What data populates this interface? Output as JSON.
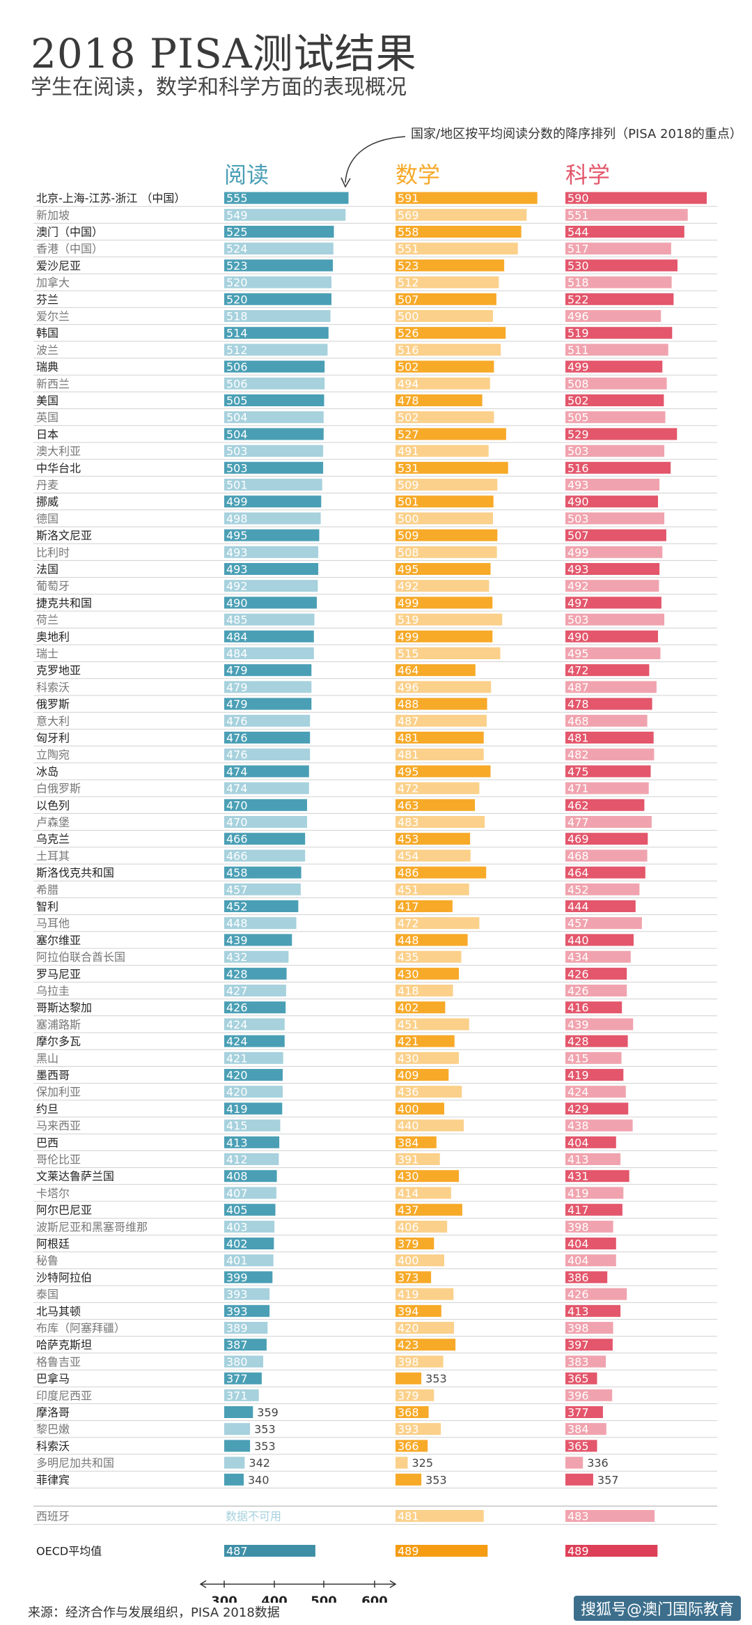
{
  "title": "2018 PISA测试结果",
  "subtitle": "学生在阅读，数学和科学方面的表现概况",
  "annotation": "国家/地区按平均阅读分数的降序排列（PISA 2018的重点）",
  "source": "来源：经济合作与发展组织，PISA 2018数据",
  "watermark": "搜狐号@澳门国际教育",
  "colors": {
    "reading": "#4a9fb5",
    "reading_light": "#a6d1dd",
    "math": "#f7a928",
    "math_light": "#fbd08a",
    "science": "#e3566b",
    "science_light": "#f0a3ae"
  },
  "chart_data": {
    "type": "bar",
    "series": [
      {
        "name": "阅读"
      },
      {
        "name": "数学"
      },
      {
        "name": "科学"
      }
    ],
    "x_axis_ticks": [
      300,
      400,
      500,
      600
    ],
    "xlim": [
      300,
      600
    ],
    "rows": [
      {
        "name": "北京-上海-江苏-浙江 （中国）",
        "reading": 555,
        "math": 591,
        "science": 590
      },
      {
        "name": "新加坡",
        "reading": 549,
        "math": 569,
        "science": 551
      },
      {
        "name": "澳门（中国）",
        "reading": 525,
        "math": 558,
        "science": 544
      },
      {
        "name": "香港（中国）",
        "reading": 524,
        "math": 551,
        "science": 517
      },
      {
        "name": "爱沙尼亚",
        "reading": 523,
        "math": 523,
        "science": 530
      },
      {
        "name": "加拿大",
        "reading": 520,
        "math": 512,
        "science": 518
      },
      {
        "name": "芬兰",
        "reading": 520,
        "math": 507,
        "science": 522
      },
      {
        "name": "爱尔兰",
        "reading": 518,
        "math": 500,
        "science": 496
      },
      {
        "name": "韩国",
        "reading": 514,
        "math": 526,
        "science": 519
      },
      {
        "name": "波兰",
        "reading": 512,
        "math": 516,
        "science": 511
      },
      {
        "name": "瑞典",
        "reading": 506,
        "math": 502,
        "science": 499
      },
      {
        "name": "新西兰",
        "reading": 506,
        "math": 494,
        "science": 508
      },
      {
        "name": "美国",
        "reading": 505,
        "math": 478,
        "science": 502
      },
      {
        "name": "英国",
        "reading": 504,
        "math": 502,
        "science": 505
      },
      {
        "name": "日本",
        "reading": 504,
        "math": 527,
        "science": 529
      },
      {
        "name": "澳大利亚",
        "reading": 503,
        "math": 491,
        "science": 503
      },
      {
        "name": "中华台北",
        "reading": 503,
        "math": 531,
        "science": 516
      },
      {
        "name": "丹麦",
        "reading": 501,
        "math": 509,
        "science": 493
      },
      {
        "name": "挪威",
        "reading": 499,
        "math": 501,
        "science": 490
      },
      {
        "name": "德国",
        "reading": 498,
        "math": 500,
        "science": 503
      },
      {
        "name": "斯洛文尼亚",
        "reading": 495,
        "math": 509,
        "science": 507
      },
      {
        "name": "比利时",
        "reading": 493,
        "math": 508,
        "science": 499
      },
      {
        "name": "法国",
        "reading": 493,
        "math": 495,
        "science": 493
      },
      {
        "name": "葡萄牙",
        "reading": 492,
        "math": 492,
        "science": 492
      },
      {
        "name": "捷克共和国",
        "reading": 490,
        "math": 499,
        "science": 497
      },
      {
        "name": "荷兰",
        "reading": 485,
        "math": 519,
        "science": 503
      },
      {
        "name": "奥地利",
        "reading": 484,
        "math": 499,
        "science": 490
      },
      {
        "name": "瑞士",
        "reading": 484,
        "math": 515,
        "science": 495
      },
      {
        "name": "克罗地亚",
        "reading": 479,
        "math": 464,
        "science": 472
      },
      {
        "name": "科索沃",
        "reading": 479,
        "math": 496,
        "science": 487
      },
      {
        "name": "俄罗斯",
        "reading": 479,
        "math": 488,
        "science": 478
      },
      {
        "name": "意大利",
        "reading": 476,
        "math": 487,
        "science": 468
      },
      {
        "name": "匈牙利",
        "reading": 476,
        "math": 481,
        "science": 481
      },
      {
        "name": "立陶宛",
        "reading": 476,
        "math": 481,
        "science": 482
      },
      {
        "name": "冰岛",
        "reading": 474,
        "math": 495,
        "science": 475
      },
      {
        "name": "白俄罗斯",
        "reading": 474,
        "math": 472,
        "science": 471
      },
      {
        "name": "以色列",
        "reading": 470,
        "math": 463,
        "science": 462
      },
      {
        "name": "卢森堡",
        "reading": 470,
        "math": 483,
        "science": 477
      },
      {
        "name": "乌克兰",
        "reading": 466,
        "math": 453,
        "science": 469
      },
      {
        "name": "土耳其",
        "reading": 466,
        "math": 454,
        "science": 468
      },
      {
        "name": "斯洛伐克共和国",
        "reading": 458,
        "math": 486,
        "science": 464
      },
      {
        "name": "希腊",
        "reading": 457,
        "math": 451,
        "science": 452
      },
      {
        "name": "智利",
        "reading": 452,
        "math": 417,
        "science": 444
      },
      {
        "name": "马耳他",
        "reading": 448,
        "math": 472,
        "science": 457
      },
      {
        "name": "塞尔维亚",
        "reading": 439,
        "math": 448,
        "science": 440
      },
      {
        "name": "阿拉伯联合酋长国",
        "reading": 432,
        "math": 435,
        "science": 434
      },
      {
        "name": "罗马尼亚",
        "reading": 428,
        "math": 430,
        "science": 426
      },
      {
        "name": "乌拉圭",
        "reading": 427,
        "math": 418,
        "science": 426
      },
      {
        "name": "哥斯达黎加",
        "reading": 426,
        "math": 402,
        "science": 416
      },
      {
        "name": "塞浦路斯",
        "reading": 424,
        "math": 451,
        "science": 439
      },
      {
        "name": "摩尔多瓦",
        "reading": 424,
        "math": 421,
        "science": 428
      },
      {
        "name": "黑山",
        "reading": 421,
        "math": 430,
        "science": 415
      },
      {
        "name": "墨西哥",
        "reading": 420,
        "math": 409,
        "science": 419
      },
      {
        "name": "保加利亚",
        "reading": 420,
        "math": 436,
        "science": 424
      },
      {
        "name": "约旦",
        "reading": 419,
        "math": 400,
        "science": 429
      },
      {
        "name": "马来西亚",
        "reading": 415,
        "math": 440,
        "science": 438
      },
      {
        "name": "巴西",
        "reading": 413,
        "math": 384,
        "science": 404
      },
      {
        "name": "哥伦比亚",
        "reading": 412,
        "math": 391,
        "science": 413
      },
      {
        "name": "文莱达鲁萨兰国",
        "reading": 408,
        "math": 430,
        "science": 431
      },
      {
        "name": "卡塔尔",
        "reading": 407,
        "math": 414,
        "science": 419
      },
      {
        "name": "阿尔巴尼亚",
        "reading": 405,
        "math": 437,
        "science": 417
      },
      {
        "name": "波斯尼亚和黑塞哥维那",
        "reading": 403,
        "math": 406,
        "science": 398
      },
      {
        "name": "阿根廷",
        "reading": 402,
        "math": 379,
        "science": 404
      },
      {
        "name": "秘鲁",
        "reading": 401,
        "math": 400,
        "science": 404
      },
      {
        "name": "沙特阿拉伯",
        "reading": 399,
        "math": 373,
        "science": 386
      },
      {
        "name": "泰国",
        "reading": 393,
        "math": 419,
        "science": 426
      },
      {
        "name": "北马其顿",
        "reading": 393,
        "math": 394,
        "science": 413
      },
      {
        "name": "布库（阿塞拜疆）",
        "reading": 389,
        "math": 420,
        "science": 398
      },
      {
        "name": "哈萨克斯坦",
        "reading": 387,
        "math": 423,
        "science": 397
      },
      {
        "name": "格鲁吉亚",
        "reading": 380,
        "math": 398,
        "science": 383
      },
      {
        "name": "巴拿马",
        "reading": 377,
        "math": 353,
        "science": 365
      },
      {
        "name": "印度尼西亚",
        "reading": 371,
        "math": 379,
        "science": 396
      },
      {
        "name": "摩洛哥",
        "reading": 359,
        "math": 368,
        "science": 377
      },
      {
        "name": "黎巴嫩",
        "reading": 353,
        "math": 393,
        "science": 384
      },
      {
        "name": "科索沃",
        "reading": 353,
        "math": 366,
        "science": 365
      },
      {
        "name": "多明尼加共和国",
        "reading": 342,
        "math": 325,
        "science": 336
      },
      {
        "name": "菲律宾",
        "reading": 340,
        "math": 353,
        "science": 357
      }
    ],
    "extra_row": {
      "name": "西班牙",
      "reading_text": "数据不可用",
      "math": 481,
      "science": 483
    },
    "oecd_row": {
      "name": "OECD平均值",
      "reading": 487,
      "math": 489,
      "science": 489
    }
  }
}
